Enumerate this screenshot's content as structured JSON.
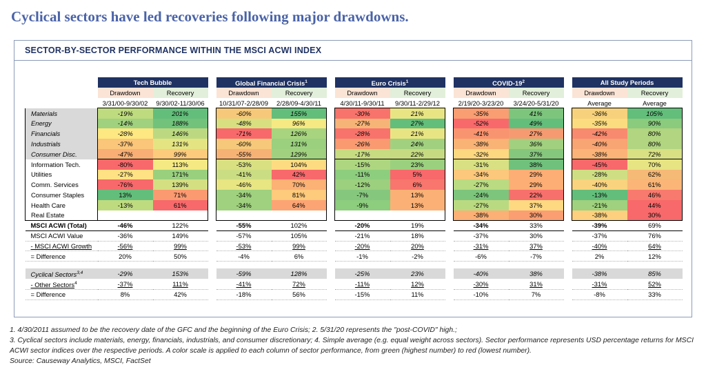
{
  "headline": "Cyclical sectors have led recoveries following major drawdowns.",
  "panel_title": "SECTOR-BY-SECTOR PERFORMANCE WITHIN THE MSCI ACWI INDEX",
  "groups": [
    {
      "name": "Tech Bubble",
      "sup": "",
      "sub": [
        "Drawdown",
        "Recovery"
      ],
      "dates": [
        "3/31/00-9/30/02",
        "9/30/02-11/30/06"
      ]
    },
    {
      "name": "Global Financial Crisis",
      "sup": "1",
      "sub": [
        "Drawdown",
        "Recovery"
      ],
      "dates": [
        "10/31/07-2/28/09",
        "2/28/09-4/30/11"
      ]
    },
    {
      "name": "Euro Crisis",
      "sup": "1",
      "sub": [
        "Drawdown",
        "Recovery"
      ],
      "dates": [
        "4/30/11-9/30/11",
        "9/30/11-2/29/12"
      ]
    },
    {
      "name": "COVID-19",
      "sup": "2",
      "sub": [
        "Drawdown",
        "Recovery"
      ],
      "dates": [
        "2/19/20-3/23/20",
        "3/24/20-5/31/20"
      ]
    },
    {
      "name": "All Study Periods",
      "sup": "",
      "sub": [
        "Drawdown",
        "Recovery"
      ],
      "dates": [
        "Average",
        "Average"
      ]
    }
  ],
  "sector_rows": [
    {
      "label": "Materials",
      "cyclical": true,
      "values": [
        "-19%",
        "201%",
        "-60%",
        "155%",
        "-30%",
        "21%",
        "-35%",
        "41%",
        "-36%",
        "105%"
      ]
    },
    {
      "label": "Energy",
      "cyclical": true,
      "values": [
        "-14%",
        "188%",
        "-48%",
        "96%",
        "-27%",
        "27%",
        "-52%",
        "49%",
        "-35%",
        "90%"
      ]
    },
    {
      "label": "Financials",
      "cyclical": true,
      "values": [
        "-28%",
        "146%",
        "-71%",
        "126%",
        "-28%",
        "21%",
        "-41%",
        "27%",
        "-42%",
        "80%"
      ]
    },
    {
      "label": "Industrials",
      "cyclical": true,
      "values": [
        "-37%",
        "131%",
        "-60%",
        "131%",
        "-26%",
        "24%",
        "-38%",
        "36%",
        "-40%",
        "80%"
      ]
    },
    {
      "label": "Consumer Disc.",
      "cyclical": true,
      "values": [
        "-47%",
        "99%",
        "-55%",
        "129%",
        "-17%",
        "22%",
        "-32%",
        "37%",
        "-38%",
        "72%"
      ]
    },
    {
      "label": "Information Tech.",
      "cyclical": false,
      "values": [
        "-80%",
        "113%",
        "-53%",
        "104%",
        "-15%",
        "23%",
        "-31%",
        "38%",
        "-45%",
        "70%"
      ]
    },
    {
      "label": "Utilities",
      "cyclical": false,
      "values": [
        "-27%",
        "171%",
        "-41%",
        "42%",
        "-11%",
        "5%",
        "-34%",
        "29%",
        "-28%",
        "62%"
      ]
    },
    {
      "label": "Comm. Services",
      "cyclical": false,
      "values": [
        "-76%",
        "139%",
        "-46%",
        "70%",
        "-12%",
        "6%",
        "-27%",
        "29%",
        "-40%",
        "61%"
      ]
    },
    {
      "label": "Consumer Staples",
      "cyclical": false,
      "values": [
        "13%",
        "71%",
        "-34%",
        "81%",
        "-7%",
        "13%",
        "-24%",
        "22%",
        "-13%",
        "46%"
      ]
    },
    {
      "label": "Health Care",
      "cyclical": false,
      "values": [
        "-13%",
        "61%",
        "-34%",
        "64%",
        "-9%",
        "13%",
        "-27%",
        "37%",
        "-21%",
        "44%"
      ]
    },
    {
      "label": "Real Estate",
      "cyclical": false,
      "values": [
        "",
        "",
        "",
        "",
        "",
        "",
        "-38%",
        "30%",
        "-38%",
        "30%"
      ]
    }
  ],
  "cell_colors": [
    [
      "#bfdb7f",
      "#63be7b",
      "#f6c97a",
      "#63be7b",
      "#f8736b",
      "#e9e483",
      "#f99d72",
      "#7dc57d",
      "#f7d17c",
      "#63be7b"
    ],
    [
      "#9fd17e",
      "#72c27c",
      "#d7df81",
      "#f6e984",
      "#f7b477",
      "#63be7b",
      "#f8696b",
      "#63be7b",
      "#fbdd80",
      "#8acb7e"
    ],
    [
      "#fde882",
      "#bcd982",
      "#f8696b",
      "#a8d47f",
      "#f8736b",
      "#e9e483",
      "#f99470",
      "#f69b71",
      "#f88a6f",
      "#b1d580"
    ],
    [
      "#fbc57a",
      "#e5e483",
      "#f6c97a",
      "#9ad07e",
      "#f99a71",
      "#a1d17f",
      "#f8b375",
      "#a1d17f",
      "#f8a473",
      "#b1d580"
    ],
    [
      "#f8ae74",
      "#fccb7c",
      "#f6b275",
      "#a1d17e",
      "#c7db81",
      "#c6db81",
      "#fed880",
      "#86c77e",
      "#fbb377",
      "#d8e083"
    ],
    [
      "#f8696b",
      "#f5e983",
      "#d9e082",
      "#fddb81",
      "#aed680",
      "#9bd07e",
      "#d8e083",
      "#70c17c",
      "#f8696b",
      "#e7e483"
    ],
    [
      "#fee283",
      "#99d07e",
      "#cbdd82",
      "#f8696b",
      "#8dcd7e",
      "#f8696b",
      "#fcc87b",
      "#fdae74",
      "#cfde82",
      "#f6ba77"
    ],
    [
      "#f8696b",
      "#d4df82",
      "#e8e583",
      "#fcb175",
      "#9cd07e",
      "#f8766d",
      "#badb81",
      "#fdae74",
      "#f9d37e",
      "#fbb577"
    ],
    [
      "#63be7b",
      "#fb9a71",
      "#9fd17e",
      "#feca7c",
      "#86c77e",
      "#fbb176",
      "#7dc57d",
      "#f8706c",
      "#63be7b",
      "#f87a6e"
    ],
    [
      "#bfdb7f",
      "#f8696b",
      "#9fd17e",
      "#fda474",
      "#8dcd7e",
      "#fbb176",
      "#bada81",
      "#ffd981",
      "#9fd17e",
      "#f8696b"
    ],
    [
      "#ffffff",
      "#ffffff",
      "#ffffff",
      "#ffffff",
      "#ffffff",
      "#ffffff",
      "#fcb075",
      "#fb9e72",
      "#fcd07e",
      "#f8696b"
    ]
  ],
  "acwi_total": {
    "label": "MSCI ACWI (Total)",
    "values": [
      "-46%",
      "122%",
      "-55%",
      "102%",
      "-20%",
      "19%",
      "-34%",
      "33%",
      "-39%",
      "69%"
    ]
  },
  "style_rows": [
    {
      "label": "MSCI ACWI Value",
      "values": [
        "-36%",
        "149%",
        "-57%",
        "105%",
        "-21%",
        "18%",
        "-37%",
        "30%",
        "-37%",
        "76%"
      ]
    },
    {
      "label": "- MSCI ACWI Growth",
      "values": [
        "-56%",
        "99%",
        "-53%",
        "99%",
        "-20%",
        "20%",
        "-31%",
        "37%",
        "-40%",
        "64%"
      ]
    },
    {
      "label": "= Difference",
      "values": [
        "20%",
        "50%",
        "-4%",
        "6%",
        "-1%",
        "-2%",
        "-6%",
        "-7%",
        "2%",
        "12%"
      ]
    }
  ],
  "cyclical_rows": [
    {
      "label": "Cyclical Sectors",
      "sup": "3,4",
      "values": [
        "-29%",
        "153%",
        "-59%",
        "128%",
        "-25%",
        "23%",
        "-40%",
        "38%",
        "-38%",
        "85%"
      ]
    },
    {
      "label": "- Other Sectors",
      "sup": "4",
      "values": [
        "-37%",
        "111%",
        "-41%",
        "72%",
        "-11%",
        "12%",
        "-30%",
        "31%",
        "-31%",
        "52%"
      ]
    },
    {
      "label": "= Difference",
      "sup": "",
      "values": [
        "8%",
        "42%",
        "-18%",
        "56%",
        "-15%",
        "11%",
        "-10%",
        "7%",
        "-8%",
        "33%"
      ]
    }
  ],
  "notes": [
    "1. 4/30/2011 assumed to be the recovery date of the GFC and the beginning of the Euro Crisis; 2. 5/31/20 represents the \"post-COVID\" high.;",
    "3. Cyclical sectors include materials, energy, financials, industrials, and consumer discretionary; 4. Simple average (e.g. equal weight across sectors). Sector performance represents USD percentage returns for MSCI ACWI sector indices over the respective periods. A color scale is applied to each column of sector performance, from green (highest number) to red (lowest number).",
    "Source: Causeway Analytics, MSCI, FactSet"
  ]
}
